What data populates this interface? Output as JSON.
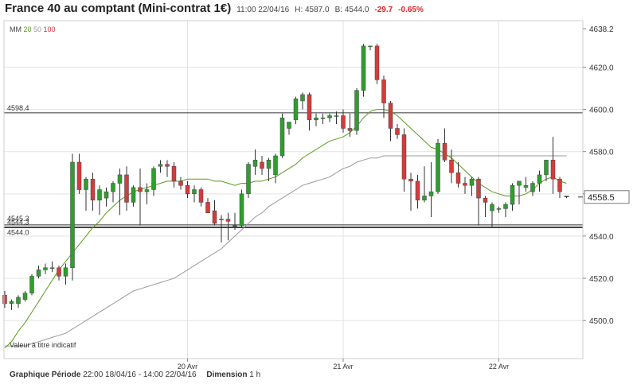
{
  "header": {
    "title": "France 40 au comptant (Mini-contrat 1€)",
    "time": "11:00 22/04/16",
    "high": "H: 4587.0",
    "low": "B: 4544.0",
    "change": "-29.7",
    "change_pct": "-0.65%"
  },
  "footer": {
    "period_label": "Graphique Période",
    "period_value": "22:00 18/04/16 - 14:00 22/04/16",
    "dimension_label": "Dimension",
    "dimension_value": "1 h"
  },
  "colors": {
    "up": "#2e9e2e",
    "down": "#d43b3b",
    "ma20": "#5a9a1c",
    "ma50": "#999999",
    "ma100": "#cc3333",
    "grid": "#e3e3e3",
    "level": "#333333"
  },
  "chart_data": {
    "type": "candlestick",
    "ylim": [
      4482,
      4642
    ],
    "yticks": [
      "4500.0",
      "4520.0",
      "4540.0",
      "4560.0",
      "4580.0",
      "4600.0",
      "4620.0",
      "4638.2"
    ],
    "xticks": [
      "20 Avr",
      "21 Avr",
      "22 Avr"
    ],
    "xtick_index": [
      27,
      50,
      73
    ],
    "last_price": "4558.5",
    "levels": [
      {
        "label": "4598.4",
        "value": 4598.4
      },
      {
        "label": "4545.3",
        "value": 4545.3
      },
      {
        "label": "4544.3",
        "value": 4544.3
      },
      {
        "label": "4544.0",
        "value": 4544.0
      }
    ],
    "legend": {
      "label": "MM",
      "series": [
        "20",
        "50",
        "100"
      ]
    },
    "watermark": "Valeur à titre indicatif",
    "candles": [
      {
        "o": 4512,
        "h": 4514,
        "l": 4506,
        "c": 4508
      },
      {
        "o": 4508,
        "h": 4510,
        "l": 4505,
        "c": 4509
      },
      {
        "o": 4508,
        "h": 4512,
        "l": 4506,
        "c": 4511
      },
      {
        "o": 4510,
        "h": 4514,
        "l": 4509,
        "c": 4513
      },
      {
        "o": 4513,
        "h": 4522,
        "l": 4512,
        "c": 4521
      },
      {
        "o": 4521,
        "h": 4526,
        "l": 4520,
        "c": 4524
      },
      {
        "o": 4524,
        "h": 4527,
        "l": 4522,
        "c": 4525
      },
      {
        "o": 4525,
        "h": 4528,
        "l": 4523,
        "c": 4525
      },
      {
        "o": 4525,
        "h": 4526,
        "l": 4519,
        "c": 4521
      },
      {
        "o": 4521,
        "h": 4527,
        "l": 4517,
        "c": 4525
      },
      {
        "o": 4525,
        "h": 4579,
        "l": 4519,
        "c": 4575
      },
      {
        "o": 4575,
        "h": 4579,
        "l": 4560,
        "c": 4562
      },
      {
        "o": 4562,
        "h": 4568,
        "l": 4552,
        "c": 4567
      },
      {
        "o": 4567,
        "h": 4570,
        "l": 4552,
        "c": 4557
      },
      {
        "o": 4557,
        "h": 4564,
        "l": 4550,
        "c": 4562
      },
      {
        "o": 4558,
        "h": 4563,
        "l": 4554,
        "c": 4561
      },
      {
        "o": 4561,
        "h": 4566,
        "l": 4556,
        "c": 4565
      },
      {
        "o": 4565,
        "h": 4572,
        "l": 4550,
        "c": 4569
      },
      {
        "o": 4569,
        "h": 4573,
        "l": 4552,
        "c": 4556
      },
      {
        "o": 4556,
        "h": 4564,
        "l": 4554,
        "c": 4563
      },
      {
        "o": 4563,
        "h": 4572,
        "l": 4545,
        "c": 4561
      },
      {
        "o": 4561,
        "h": 4565,
        "l": 4555,
        "c": 4562
      },
      {
        "o": 4562,
        "h": 4573,
        "l": 4559,
        "c": 4572
      },
      {
        "o": 4573,
        "h": 4576,
        "l": 4570,
        "c": 4574
      },
      {
        "o": 4574,
        "h": 4576,
        "l": 4568,
        "c": 4573
      },
      {
        "o": 4573,
        "h": 4575,
        "l": 4563,
        "c": 4566
      },
      {
        "o": 4566,
        "h": 4568,
        "l": 4562,
        "c": 4564
      },
      {
        "o": 4564,
        "h": 4566,
        "l": 4558,
        "c": 4560
      },
      {
        "o": 4560,
        "h": 4564,
        "l": 4556,
        "c": 4562
      },
      {
        "o": 4562,
        "h": 4563,
        "l": 4554,
        "c": 4556
      },
      {
        "o": 4556,
        "h": 4558,
        "l": 4551,
        "c": 4551
      },
      {
        "o": 4552,
        "h": 4557,
        "l": 4545,
        "c": 4546
      },
      {
        "o": 4548,
        "h": 4550,
        "l": 4537,
        "c": 4548
      },
      {
        "o": 4548,
        "h": 4551,
        "l": 4538,
        "c": 4547
      },
      {
        "o": 4545,
        "h": 4551,
        "l": 4543,
        "c": 4545
      },
      {
        "o": 4545,
        "h": 4562,
        "l": 4544,
        "c": 4560
      },
      {
        "o": 4560,
        "h": 4575,
        "l": 4558,
        "c": 4574
      },
      {
        "o": 4573,
        "h": 4581,
        "l": 4569,
        "c": 4576
      },
      {
        "o": 4575,
        "h": 4578,
        "l": 4569,
        "c": 4572
      },
      {
        "o": 4572,
        "h": 4577,
        "l": 4566,
        "c": 4576
      },
      {
        "o": 4569,
        "h": 4579,
        "l": 4565,
        "c": 4578
      },
      {
        "o": 4578,
        "h": 4598,
        "l": 4577,
        "c": 4596
      },
      {
        "o": 4591,
        "h": 4594,
        "l": 4588,
        "c": 4594
      },
      {
        "o": 4595,
        "h": 4606,
        "l": 4593,
        "c": 4605
      },
      {
        "o": 4604,
        "h": 4608,
        "l": 4600,
        "c": 4607
      },
      {
        "o": 4607,
        "h": 4608,
        "l": 4590,
        "c": 4595
      },
      {
        "o": 4595,
        "h": 4598,
        "l": 4592,
        "c": 4596
      },
      {
        "o": 4596,
        "h": 4598,
        "l": 4593,
        "c": 4596
      },
      {
        "o": 4596,
        "h": 4598,
        "l": 4594,
        "c": 4597
      },
      {
        "o": 4597,
        "h": 4599,
        "l": 4593,
        "c": 4597
      },
      {
        "o": 4597,
        "h": 4600,
        "l": 4589,
        "c": 4591
      },
      {
        "o": 4591,
        "h": 4598,
        "l": 4587,
        "c": 4590
      },
      {
        "o": 4590,
        "h": 4610,
        "l": 4588,
        "c": 4609
      },
      {
        "o": 4609,
        "h": 4631,
        "l": 4606,
        "c": 4630
      },
      {
        "o": 4630,
        "h": 4630,
        "l": 4628,
        "c": 4630
      },
      {
        "o": 4630,
        "h": 4631,
        "l": 4612,
        "c": 4614
      },
      {
        "o": 4614,
        "h": 4616,
        "l": 4596,
        "c": 4603
      },
      {
        "o": 4603,
        "h": 4604,
        "l": 4585,
        "c": 4591
      },
      {
        "o": 4591,
        "h": 4593,
        "l": 4586,
        "c": 4588
      },
      {
        "o": 4588,
        "h": 4591,
        "l": 4561,
        "c": 4567
      },
      {
        "o": 4567,
        "h": 4570,
        "l": 4552,
        "c": 4566
      },
      {
        "o": 4566,
        "h": 4569,
        "l": 4553,
        "c": 4557
      },
      {
        "o": 4557,
        "h": 4573,
        "l": 4556,
        "c": 4559
      },
      {
        "o": 4559,
        "h": 4575,
        "l": 4549,
        "c": 4561
      },
      {
        "o": 4561,
        "h": 4586,
        "l": 4560,
        "c": 4584
      },
      {
        "o": 4584,
        "h": 4591,
        "l": 4575,
        "c": 4576
      },
      {
        "o": 4576,
        "h": 4581,
        "l": 4565,
        "c": 4570
      },
      {
        "o": 4570,
        "h": 4575,
        "l": 4563,
        "c": 4565
      },
      {
        "o": 4565,
        "h": 4568,
        "l": 4560,
        "c": 4564
      },
      {
        "o": 4564,
        "h": 4568,
        "l": 4559,
        "c": 4567
      },
      {
        "o": 4567,
        "h": 4568,
        "l": 4545,
        "c": 4558
      },
      {
        "o": 4558,
        "h": 4559,
        "l": 4549,
        "c": 4556
      },
      {
        "o": 4552,
        "h": 4556,
        "l": 4544,
        "c": 4555
      },
      {
        "o": 4553,
        "h": 4554,
        "l": 4551,
        "c": 4553
      },
      {
        "o": 4553,
        "h": 4556,
        "l": 4549,
        "c": 4555
      },
      {
        "o": 4555,
        "h": 4565,
        "l": 4552,
        "c": 4564
      },
      {
        "o": 4564,
        "h": 4566,
        "l": 4555,
        "c": 4566
      },
      {
        "o": 4563,
        "h": 4568,
        "l": 4561,
        "c": 4564
      },
      {
        "o": 4561,
        "h": 4566,
        "l": 4559,
        "c": 4565
      },
      {
        "o": 4565,
        "h": 4571,
        "l": 4561,
        "c": 4569
      },
      {
        "o": 4569,
        "h": 4575,
        "l": 4566,
        "c": 4576
      },
      {
        "o": 4576,
        "h": 4587,
        "l": 4560,
        "c": 4567
      },
      {
        "o": 4567,
        "h": 4568,
        "l": 4558,
        "c": 4561
      },
      {
        "o": 4559,
        "h": 4559,
        "l": 4558,
        "c": 4558.5
      }
    ],
    "ma20": [
      4487,
      4490,
      4495,
      4499,
      4504,
      4509,
      4514,
      4519,
      4524,
      4528,
      4532,
      4536,
      4540,
      4544,
      4547,
      4551,
      4554,
      4557,
      4559,
      4561,
      4562,
      4563,
      4564,
      4565,
      4566,
      4566,
      4566,
      4567,
      4567,
      4567,
      4567,
      4566,
      4566,
      4565,
      4564,
      4565,
      4565,
      4566,
      4566,
      4567,
      4568,
      4570,
      4572,
      4574,
      4577,
      4579,
      4581,
      4583,
      4585,
      4586,
      4587,
      4589,
      4592,
      4596,
      4599,
      4600,
      4600,
      4599,
      4597,
      4594,
      4591,
      4588,
      4585,
      4582,
      4581,
      4579,
      4577,
      4574,
      4571,
      4568,
      4565,
      4563,
      4561,
      4560,
      4559,
      4559,
      4559,
      4560,
      4562,
      4565,
      4567,
      4568,
      4566,
      4565
    ],
    "ma50": [
      4488,
      4488,
      4488,
      4488,
      4489,
      4490,
      4491,
      4492,
      4493,
      4494,
      4496,
      4498,
      4500,
      4502,
      4504,
      4506,
      4508,
      4510,
      4512,
      4514,
      4515,
      4516,
      4517,
      4518,
      4519,
      4520,
      4522,
      4524,
      4526,
      4528,
      4530,
      4532,
      4534,
      4537,
      4540,
      4543,
      4546,
      4549,
      4551,
      4554,
      4556,
      4558,
      4560,
      4562,
      4564,
      4565,
      4566,
      4567,
      4568,
      4570,
      4572,
      4573,
      4575,
      4576,
      4577,
      4577,
      4578,
      4578,
      4578,
      4578,
      4578,
      4578,
      4578,
      4578,
      4578,
      4578,
      4578,
      4578,
      4578,
      4578,
      4578,
      4578,
      4578,
      4578,
      4578,
      4578,
      4578,
      4578,
      4578,
      4578,
      4578,
      4578,
      4578,
      4578
    ]
  }
}
